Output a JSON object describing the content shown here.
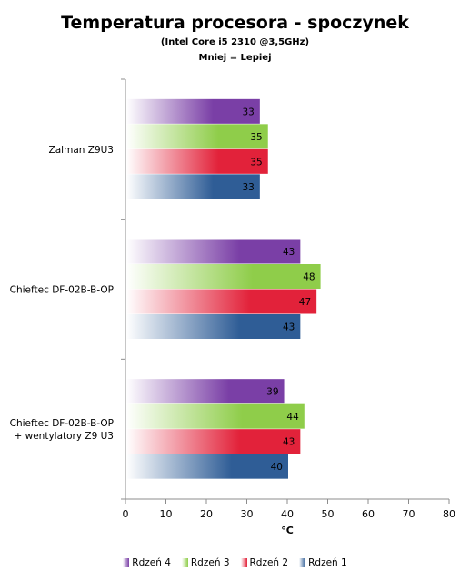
{
  "chart_data": {
    "type": "bar",
    "orientation": "horizontal",
    "title": "Temperatura procesora - spoczynek",
    "subtitle": "(Intel Core i5 2310 @3,5GHz)",
    "subtitle2": "Mniej = Lepiej",
    "xlabel": "°C",
    "xlim": [
      0,
      80
    ],
    "xticks": [
      0,
      10,
      20,
      30,
      40,
      50,
      60,
      70,
      80
    ],
    "categories": [
      [
        "Zalman Z9U3"
      ],
      [
        "Chieftec DF-02B-B-OP"
      ],
      [
        "Chieftec DF-02B-B-OP",
        "+ wentylatory Z9 U3"
      ]
    ],
    "series": [
      {
        "name": "Rdzeń 4",
        "color": "#7a3fa6",
        "values": [
          33,
          43,
          39
        ]
      },
      {
        "name": "Rdzeń 3",
        "color": "#8fcd4a",
        "values": [
          35,
          48,
          44
        ]
      },
      {
        "name": "Rdzeń 2",
        "color": "#e2223a",
        "values": [
          35,
          47,
          43
        ]
      },
      {
        "name": "Rdzeń 1",
        "color": "#2f5d96",
        "values": [
          33,
          43,
          40
        ]
      }
    ],
    "legend_position": "bottom",
    "grid": false
  }
}
